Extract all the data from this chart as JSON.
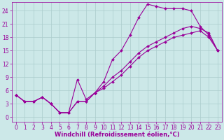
{
  "xlabel": "Windchill (Refroidissement éolien,°C)",
  "background_color": "#cce8e8",
  "line_color": "#990099",
  "grid_color": "#aacccc",
  "xlim": [
    -0.5,
    23.5
  ],
  "ylim": [
    -1,
    26
  ],
  "xticks": [
    0,
    1,
    2,
    3,
    4,
    5,
    6,
    7,
    8,
    9,
    10,
    11,
    12,
    13,
    14,
    15,
    16,
    17,
    18,
    19,
    20,
    21,
    22,
    23
  ],
  "yticks": [
    0,
    3,
    6,
    9,
    12,
    15,
    18,
    21,
    24
  ],
  "line1_x": [
    0,
    1,
    2,
    3,
    4,
    5,
    6,
    7,
    8,
    9,
    10,
    11,
    12,
    13,
    14,
    15,
    16,
    17,
    18,
    19,
    20,
    21,
    22,
    23
  ],
  "line1_y": [
    5.0,
    3.5,
    3.5,
    4.5,
    3.0,
    1.0,
    1.0,
    8.5,
    4.0,
    5.5,
    8.0,
    13.0,
    15.0,
    18.5,
    22.5,
    25.5,
    25.0,
    24.5,
    24.5,
    24.5,
    24.0,
    20.5,
    18.5,
    15.0
  ],
  "line2_x": [
    0,
    1,
    2,
    3,
    4,
    5,
    6,
    7,
    8,
    9,
    10,
    11,
    12,
    13,
    14,
    15,
    16,
    17,
    18,
    19,
    20,
    21,
    22,
    23
  ],
  "line2_y": [
    5.0,
    3.5,
    3.5,
    4.5,
    3.0,
    1.0,
    1.0,
    3.5,
    3.5,
    5.5,
    7.0,
    9.0,
    10.5,
    12.5,
    14.5,
    16.0,
    17.0,
    18.0,
    19.0,
    20.0,
    20.5,
    20.0,
    19.0,
    15.0
  ],
  "line3_x": [
    0,
    1,
    2,
    3,
    4,
    5,
    6,
    7,
    8,
    9,
    10,
    11,
    12,
    13,
    14,
    15,
    16,
    17,
    18,
    19,
    20,
    21,
    22,
    23
  ],
  "line3_y": [
    5.0,
    3.5,
    3.5,
    4.5,
    3.0,
    1.0,
    1.0,
    3.5,
    3.5,
    5.5,
    6.5,
    8.0,
    9.5,
    11.5,
    13.5,
    15.0,
    16.0,
    17.0,
    18.0,
    18.5,
    19.0,
    19.5,
    18.0,
    15.0
  ],
  "tick_fontsize": 5.5,
  "label_fontsize": 6.0,
  "marker": "D",
  "markersize": 2.0,
  "linewidth": 0.8
}
